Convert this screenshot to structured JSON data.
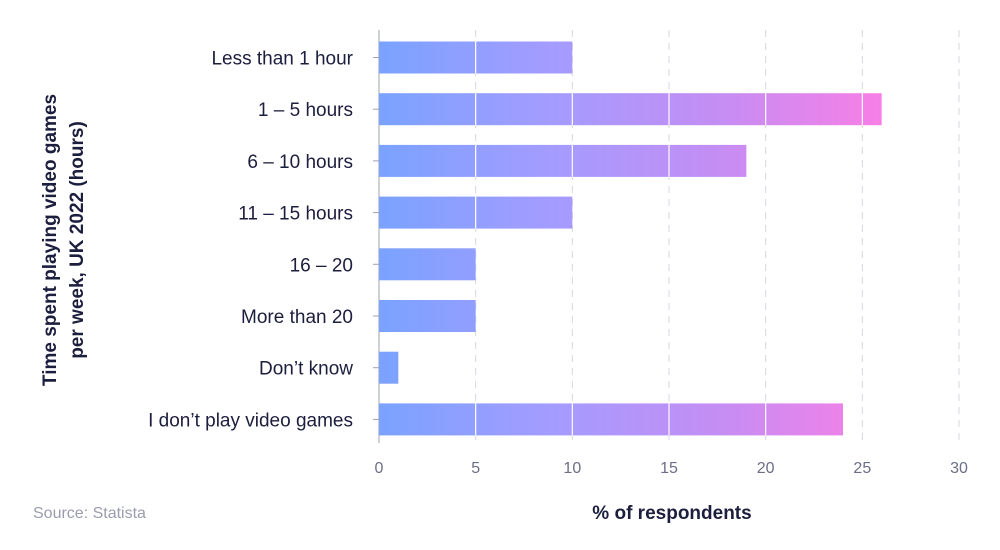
{
  "source": "Source: Statista",
  "chart_data": {
    "type": "bar",
    "orientation": "horizontal",
    "title": "",
    "ylabel_lines": [
      "Time spent playing video games",
      "per week, UK 2022 (hours)"
    ],
    "xlabel": "% of respondents",
    "categories": [
      "Less than 1 hour",
      "1 – 5 hours",
      "6 – 10 hours",
      "11 – 15 hours",
      "16 – 20",
      "More than 20",
      "Don’t know",
      "I don’t play video games"
    ],
    "values": [
      10,
      26,
      19,
      10,
      5,
      5,
      1,
      24
    ],
    "xlim": [
      0,
      30
    ],
    "xticks": [
      0,
      5,
      10,
      15,
      20,
      25,
      30
    ],
    "grid": "vertical dashed",
    "gradient_colors": [
      "#7aa2ff",
      "#a39cff",
      "#c38ef4",
      "#f77fe6"
    ]
  }
}
